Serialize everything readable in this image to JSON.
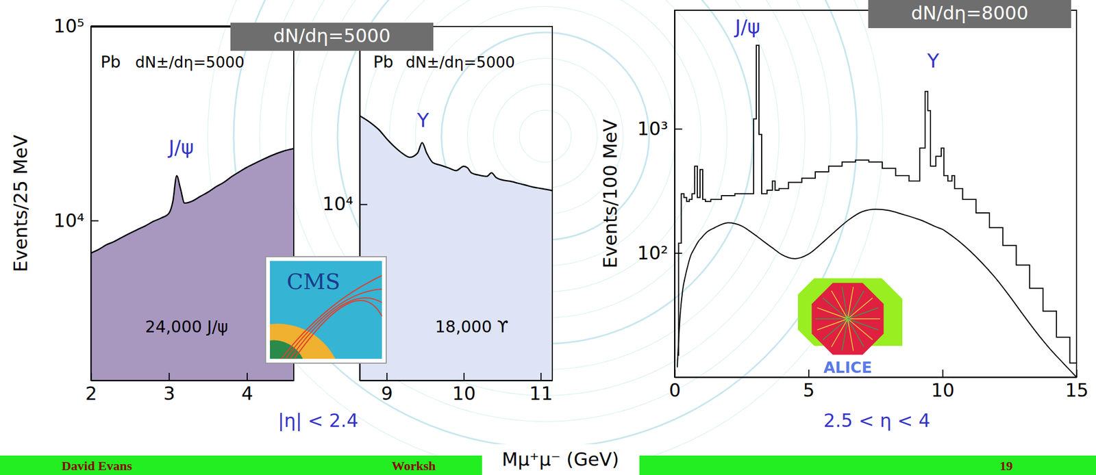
{
  "chart_data": [
    {
      "type": "area",
      "y_label": "Events/25 MeV",
      "log": "y",
      "color": "#a898c0",
      "xlim": [
        2,
        4.6
      ],
      "xticks": [
        2,
        3,
        4
      ],
      "ylim": [
        1500,
        100000
      ],
      "yticks": [
        {
          "value": 10000,
          "label": "10⁴"
        },
        {
          "value": 100000,
          "label": "10⁵"
        }
      ],
      "annotations": [
        "Pb",
        "dN±/dη=5000",
        "J/ψ",
        "24,000 J/ψ"
      ],
      "x": [
        2.0,
        2.1,
        2.2,
        2.3,
        2.4,
        2.5,
        2.6,
        2.7,
        2.8,
        2.9,
        3.0,
        3.05,
        3.1,
        3.15,
        3.2,
        3.3,
        3.4,
        3.5,
        3.6,
        3.7,
        3.8,
        3.9,
        4.0,
        4.1,
        4.2,
        4.3,
        4.4,
        4.5,
        4.6
      ],
      "values": [
        6800,
        7100,
        7500,
        7800,
        8200,
        8600,
        9000,
        9400,
        9900,
        10300,
        10900,
        12500,
        17000,
        14500,
        12300,
        12600,
        13300,
        14000,
        14900,
        15700,
        16800,
        17800,
        18800,
        19700,
        20600,
        21500,
        22300,
        23000,
        23500
      ]
    },
    {
      "type": "area",
      "log": "y",
      "color": "#dee4f6",
      "xlim": [
        8.65,
        11.15
      ],
      "xticks": [
        9,
        10,
        11
      ],
      "ylim": [
        1200,
        85000
      ],
      "yticks": [
        {
          "value": 10000,
          "label": "10⁴"
        }
      ],
      "annotations": [
        "Pb",
        "dN±/dη=5000",
        "Υ",
        "18,000 ϒ"
      ],
      "x": [
        8.65,
        8.8,
        8.9,
        9.0,
        9.1,
        9.2,
        9.3,
        9.4,
        9.46,
        9.52,
        9.6,
        9.7,
        9.8,
        9.9,
        10.0,
        10.05,
        10.1,
        10.2,
        10.3,
        10.36,
        10.42,
        10.5,
        10.6,
        10.7,
        10.8,
        10.9,
        11.0,
        11.15
      ],
      "values": [
        29000,
        26500,
        24500,
        22000,
        20000,
        18500,
        17600,
        18500,
        21000,
        18500,
        16500,
        16000,
        15500,
        15000,
        15800,
        15500,
        14600,
        14200,
        14000,
        14600,
        13800,
        13400,
        13200,
        12900,
        12600,
        12300,
        12100,
        11800
      ]
    },
    {
      "type": "line",
      "y_label": "Events/100 MeV",
      "log": "y",
      "xlim": [
        0,
        15
      ],
      "xticks": [
        0,
        5,
        10,
        15
      ],
      "ylim": [
        10,
        9000
      ],
      "yticks": [
        {
          "value": 100,
          "label": "10²"
        },
        {
          "value": 1000,
          "label": "10³"
        }
      ],
      "annotations": [
        "J/ψ",
        "Υ"
      ],
      "x": [
        0.1,
        0.2,
        0.3,
        0.4,
        0.5,
        0.6,
        0.7,
        0.8,
        0.9,
        1.0,
        1.1,
        1.2,
        1.5,
        2.0,
        2.5,
        2.9,
        3.0,
        3.1,
        3.2,
        3.3,
        3.6,
        3.7,
        3.8,
        4.0,
        4.5,
        5.0,
        5.5,
        6.0,
        6.5,
        7.0,
        7.5,
        8.0,
        8.5,
        9.0,
        9.3,
        9.4,
        9.5,
        9.6,
        9.9,
        10.0,
        10.1,
        10.3,
        10.4,
        10.5,
        11.0,
        11.5,
        12.0,
        12.5,
        13.0,
        13.5,
        14.0,
        14.5,
        15.0
      ],
      "series": [
        {
          "color": "#000000",
          "line_style": "step",
          "values": [
            15,
            120,
            300,
            280,
            260,
            270,
            300,
            500,
            280,
            470,
            270,
            260,
            270,
            290,
            300,
            300,
            1200,
            4700,
            900,
            300,
            320,
            380,
            320,
            330,
            370,
            400,
            450,
            500,
            540,
            560,
            540,
            480,
            420,
            380,
            700,
            2000,
            1400,
            500,
            600,
            700,
            420,
            380,
            420,
            330,
            270,
            210,
            160,
            115,
            80,
            52,
            34,
            21,
            13
          ]
        },
        {
          "color": "#000000",
          "line_style": "solid",
          "values": [
            12,
            30,
            50,
            65,
            80,
            95,
            105,
            115,
            125,
            132,
            140,
            147,
            160,
            175,
            165,
            145,
            140,
            135,
            130,
            125,
            112,
            108,
            104,
            97,
            90,
            98,
            120,
            150,
            185,
            215,
            225,
            220,
            205,
            190,
            180,
            176,
            172,
            168,
            158,
            155,
            150,
            140,
            135,
            130,
            105,
            82,
            62,
            45,
            32,
            23,
            17,
            13,
            10
          ]
        }
      ]
    }
  ],
  "groups": [
    {
      "header": "dN/dη=5000",
      "range_label": "|η| < 2.4",
      "logo": "CMS"
    },
    {
      "header": "dN/dη=8000",
      "range_label": "2.5 < η < 4",
      "logo": "ALICE"
    }
  ],
  "x_label": "Mμ⁺μ⁻ (GeV)",
  "footer": {
    "author": "David Evans",
    "event": "Worksh",
    "page": "19"
  }
}
